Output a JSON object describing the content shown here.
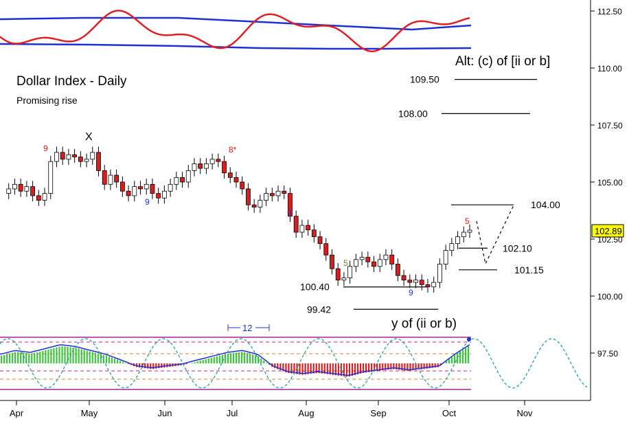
{
  "chart_data": {
    "type": "candlestick",
    "title": "Dollar Index - Daily",
    "subtitle": "Promising rise",
    "alt_label": "Alt: (c) of [ii or b]",
    "wave_label_x": "X",
    "wave_label_y": "y of (ii or b)",
    "cycle_label": "12",
    "y_ticks": [
      {
        "value": 112.5,
        "label": "112.50"
      },
      {
        "value": 110.0,
        "label": "110.00"
      },
      {
        "value": 107.5,
        "label": "107.50"
      },
      {
        "value": 105.0,
        "label": "105.00"
      },
      {
        "value": 102.5,
        "label": "102.50"
      },
      {
        "value": 100.0,
        "label": "100.00"
      },
      {
        "value": 97.5,
        "label": "97.50"
      }
    ],
    "x_ticks": [
      "Apr",
      "May",
      "Jun",
      "Jul",
      "Aug",
      "Sep",
      "Oct",
      "Nov"
    ],
    "ylim": [
      95.6,
      113.2
    ],
    "last_price": "102.89",
    "levels": [
      {
        "value": 109.5,
        "label": "109.50"
      },
      {
        "value": 108.0,
        "label": "108.00"
      },
      {
        "value": 104.0,
        "label": "104.00"
      },
      {
        "value": 102.1,
        "label": "102.10"
      },
      {
        "value": 101.15,
        "label": "101.15"
      },
      {
        "value": 100.4,
        "label": "100.40"
      },
      {
        "value": 99.42,
        "label": "99.42"
      }
    ],
    "count_markers": [
      {
        "label": "9",
        "color": "#d62020"
      },
      {
        "label": "9",
        "color": "#2030d0"
      },
      {
        "label": "8*",
        "color": "#d62020"
      },
      {
        "label": "9",
        "color": "#2030d0"
      },
      {
        "label": "5",
        "color": "#8a7a00"
      },
      {
        "label": "9",
        "color": "#2030d0"
      },
      {
        "label": "5",
        "color": "#d62020"
      }
    ],
    "price_path": [
      104.5,
      104.7,
      104.9,
      104.6,
      104.8,
      104.4,
      104.2,
      104.5,
      105.9,
      106.3,
      106.0,
      106.2,
      106.1,
      105.9,
      106.0,
      106.3,
      105.5,
      104.9,
      105.3,
      105.0,
      104.6,
      104.4,
      104.8,
      104.7,
      104.9,
      104.5,
      104.3,
      104.6,
      104.9,
      105.2,
      105.0,
      105.5,
      105.8,
      105.6,
      105.8,
      106.0,
      105.9,
      105.4,
      105.2,
      105.0,
      104.7,
      104.0,
      103.9,
      104.2,
      104.5,
      104.4,
      104.6,
      104.5,
      103.5,
      102.8,
      103.1,
      102.9,
      102.6,
      102.3,
      101.8,
      101.2,
      100.7,
      100.8,
      101.3,
      101.6,
      101.7,
      101.5,
      101.3,
      101.6,
      101.8,
      101.4,
      100.9,
      100.7,
      100.6,
      100.7,
      100.5,
      100.4,
      100.6,
      101.4,
      102.0,
      102.3,
      102.6,
      102.8,
      102.89
    ],
    "oscillator_top": {
      "upper_band": [
        111.1,
        111.0,
        111.0,
        110.9,
        110.9,
        111.0,
        111.0,
        110.95,
        110.8
      ],
      "lower_band_label": "",
      "wave": [
        111.9,
        111.6,
        112.4,
        111.2,
        111.7,
        111.3,
        112.1,
        111.4,
        112.6
      ]
    },
    "oscillator_bottom": {
      "hist_values": [
        0.4,
        0.6,
        0.5,
        0.7,
        0.9,
        0.8,
        0.6,
        0.4,
        0.1,
        -0.2,
        -0.3,
        -0.2,
        -0.1,
        0.1,
        0.3,
        0.5,
        0.6,
        0.4,
        -0.2,
        -0.5,
        -0.6,
        -0.5,
        -0.6,
        -0.7,
        -0.5,
        -0.4,
        -0.3,
        -0.4,
        -0.3,
        -0.2,
        0.4,
        0.9
      ],
      "ylim": [
        -1,
        1
      ]
    },
    "cycle_projection": "dashed sine"
  }
}
